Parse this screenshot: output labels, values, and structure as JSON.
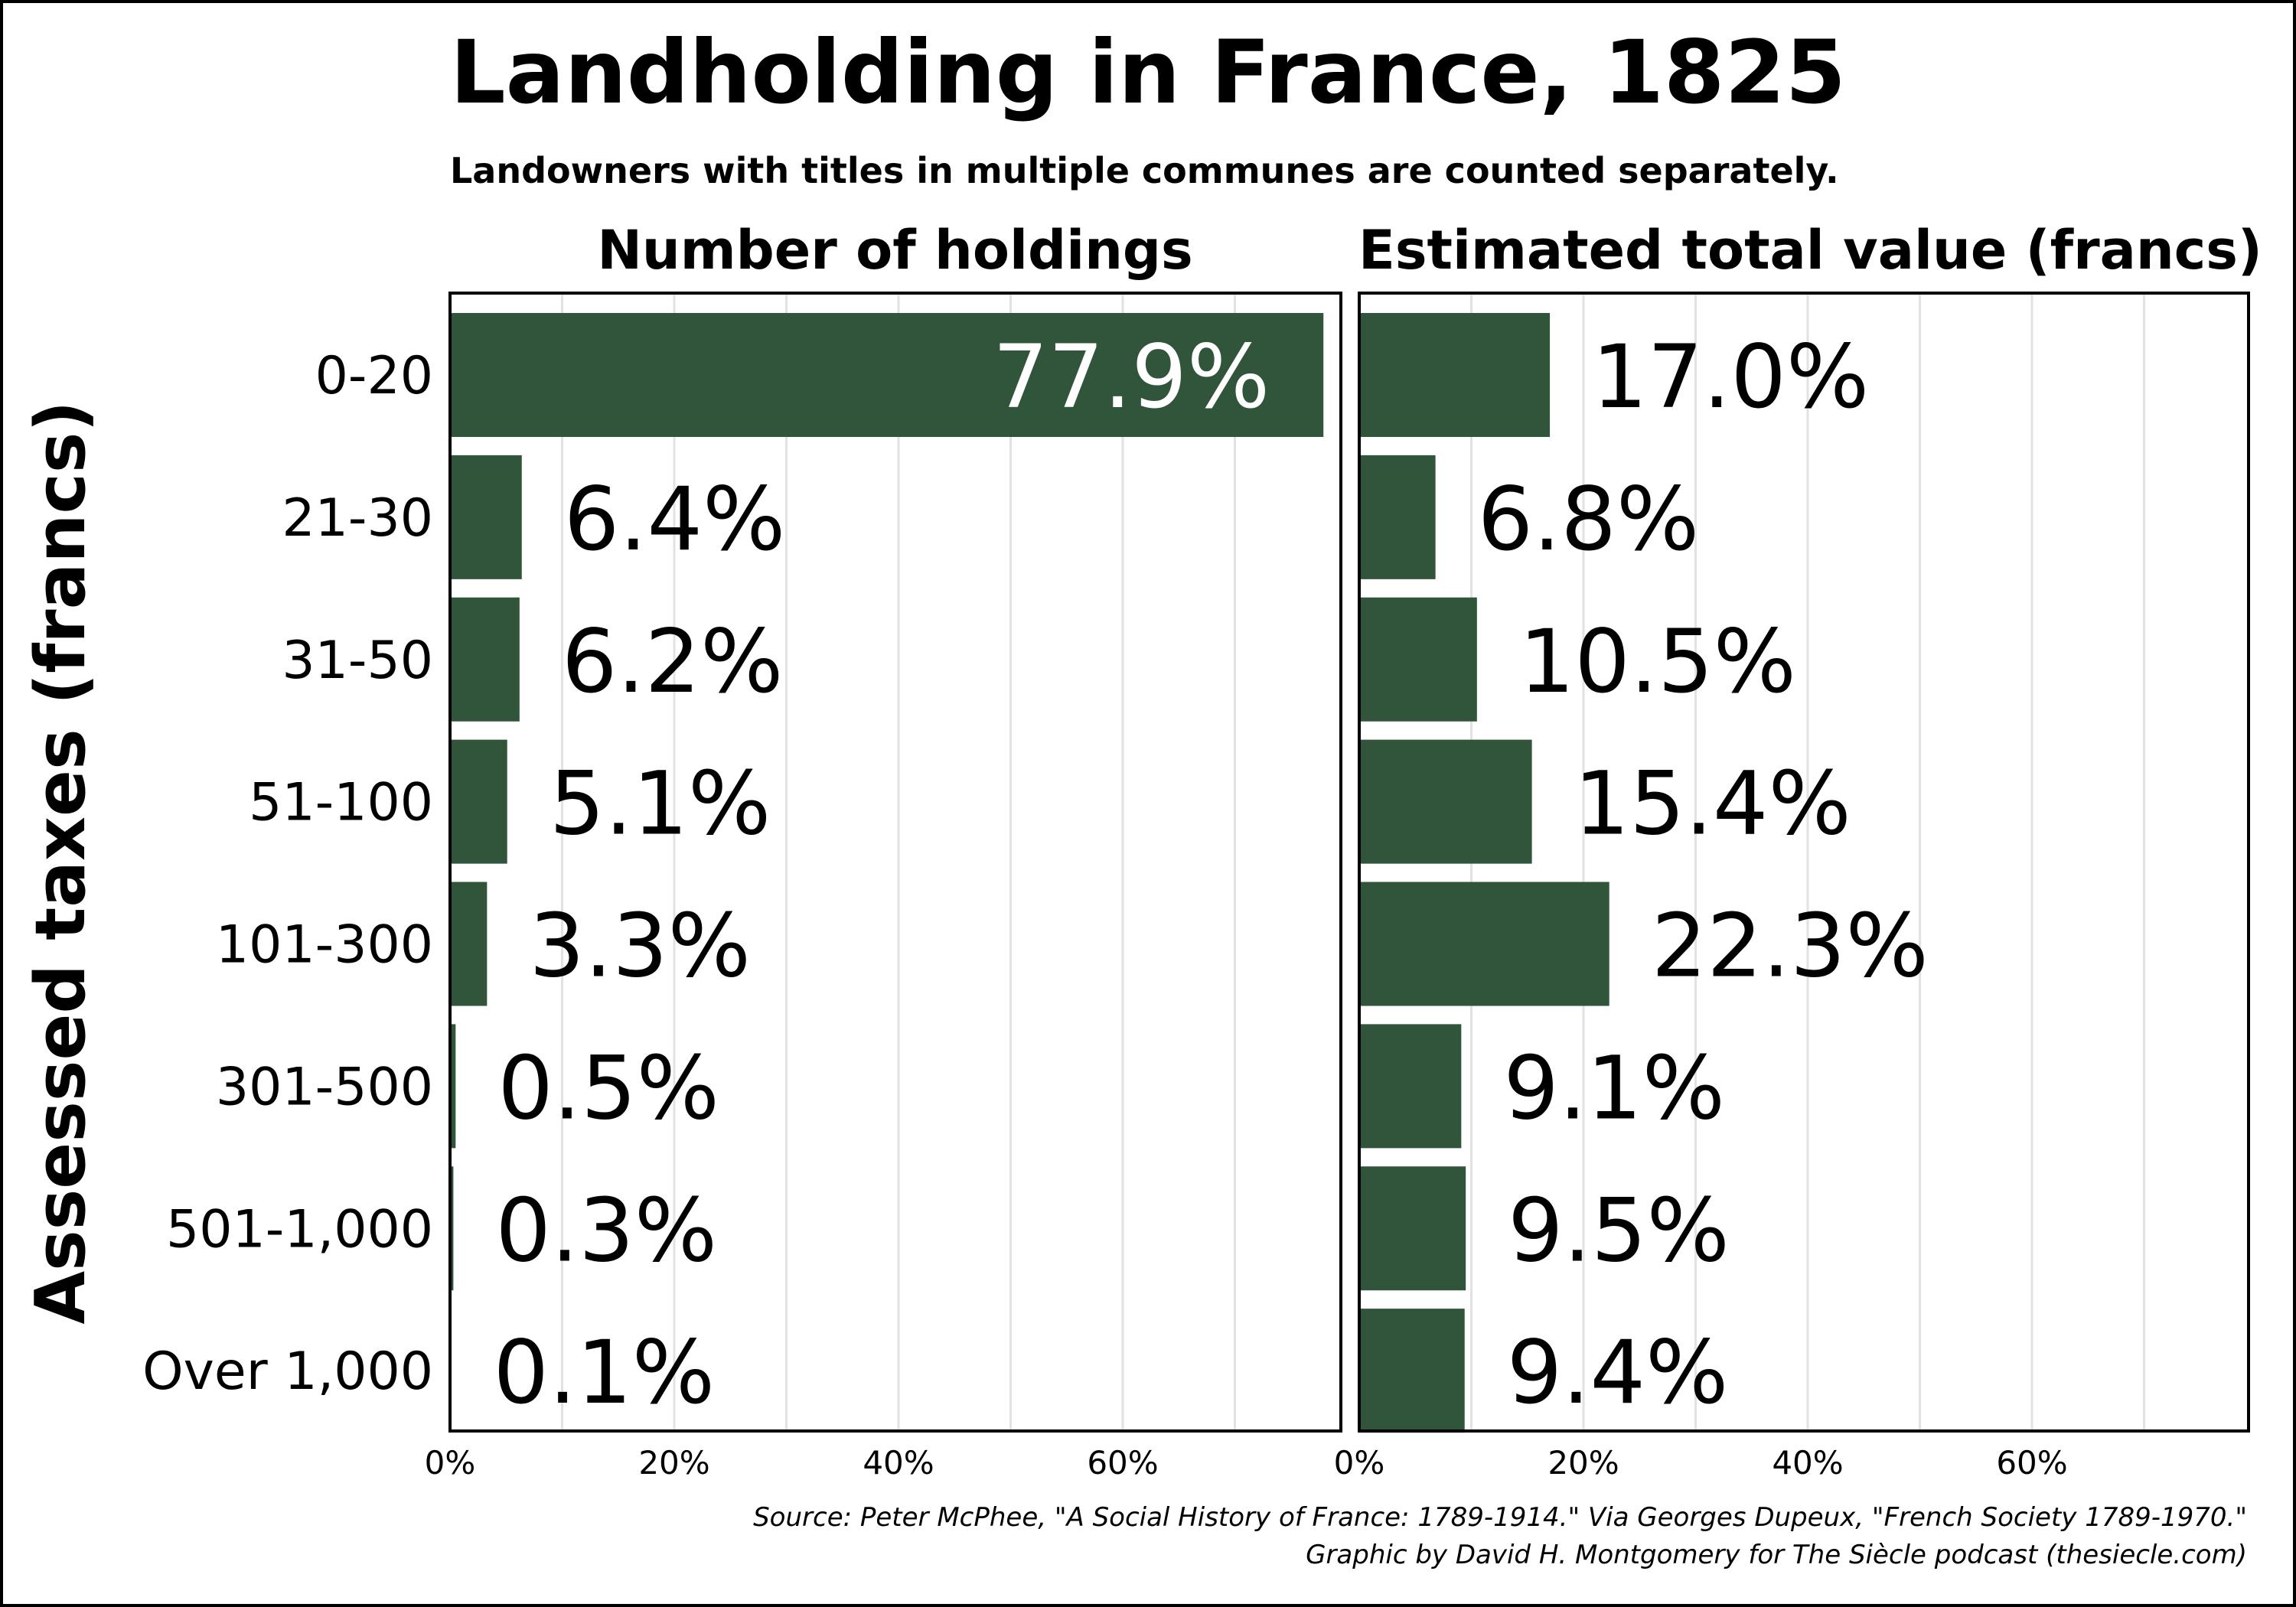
{
  "title": "Landholding in France, 1825",
  "subtitle": "Landowners with titles in multiple communes are counted separately.",
  "source_line1": "Source: Peter McPhee, \"A Social History of France: 1789-1914.\" Via Georges Dupeux, \"French Society 1789-1970.\"",
  "source_line2": "Graphic by David H. Montgomery for The Siècle podcast (thesiecle.com)",
  "colors": {
    "bar": "#30553a",
    "grid": "#e2e2e2",
    "axis": "#000000"
  },
  "chart_data": {
    "type": "bar",
    "orientation": "horizontal",
    "ylabel": "Assessed taxes (francs)",
    "categories": [
      "0-20",
      "21-30",
      "31-50",
      "51-100",
      "101-300",
      "301-500",
      "501-1,000",
      "Over 1,000"
    ],
    "x_ticks": [
      "0%",
      "20%",
      "40%",
      "60%"
    ],
    "xlim": [
      0,
      80
    ],
    "grid": true,
    "panels": [
      {
        "title": "Number of holdings",
        "values": [
          77.9,
          6.4,
          6.2,
          5.1,
          3.3,
          0.5,
          0.3,
          0.1
        ],
        "labels": [
          "77.9%",
          "6.4%",
          "6.2%",
          "5.1%",
          "3.3%",
          "0.5%",
          "0.3%",
          "0.1%"
        ]
      },
      {
        "title": "Estimated total value (francs)",
        "values": [
          17.0,
          6.8,
          10.5,
          15.4,
          22.3,
          9.1,
          9.5,
          9.4
        ],
        "labels": [
          "17.0%",
          "6.8%",
          "10.5%",
          "15.4%",
          "22.3%",
          "9.1%",
          "9.5%",
          "9.4%"
        ]
      }
    ]
  }
}
